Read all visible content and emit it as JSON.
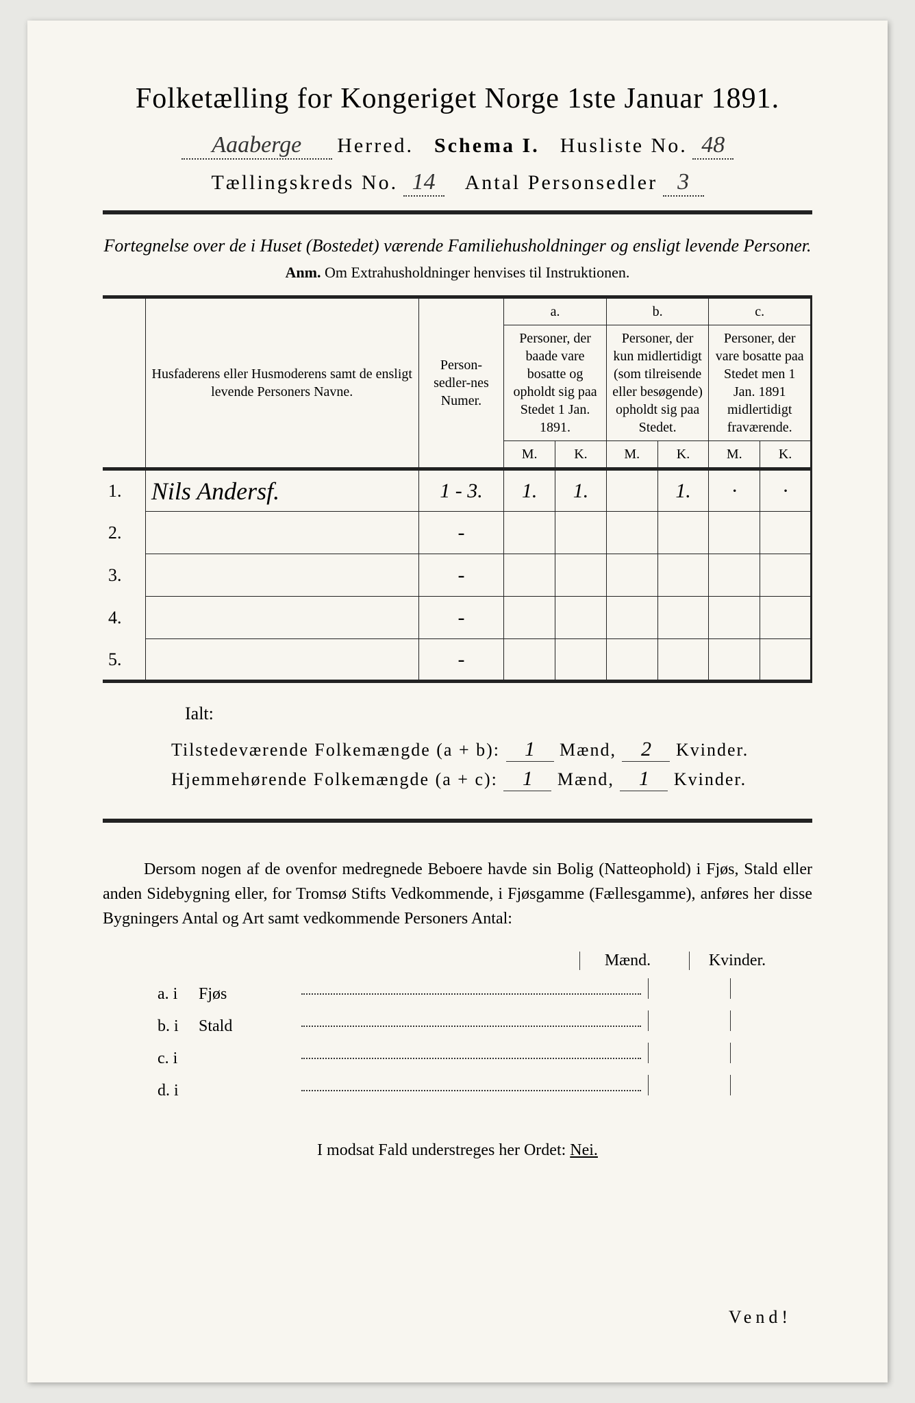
{
  "title": "Folketælling for Kongeriget Norge 1ste Januar 1891.",
  "header": {
    "herred_value": "Aaaberge",
    "herred_label": "Herred.",
    "schema_label": "Schema I.",
    "husliste_label": "Husliste No.",
    "husliste_value": "48",
    "kreds_label": "Tællingskreds No.",
    "kreds_value": "14",
    "personsedler_label": "Antal Personsedler",
    "personsedler_value": "3"
  },
  "subtitle": "Fortegnelse over de i Huset (Bostedet) værende Familiehusholdninger og ensligt levende Personer.",
  "anm_label": "Anm.",
  "anm_text": "Om Extrahusholdninger henvises til Instruktionen.",
  "table": {
    "col1": "Husfaderens eller Husmoderens samt de ensligt levende Personers Navne.",
    "col2": "Person-sedler-nes Numer.",
    "col_a_letter": "a.",
    "col_a": "Personer, der baade vare bosatte og opholdt sig paa Stedet 1 Jan. 1891.",
    "col_b_letter": "b.",
    "col_b": "Personer, der kun midlertidigt (som tilreisende eller besøgende) opholdt sig paa Stedet.",
    "col_c_letter": "c.",
    "col_c": "Personer, der vare bosatte paa Stedet men 1 Jan. 1891 midlertidigt fraværende.",
    "m": "M.",
    "k": "K.",
    "rows": [
      {
        "num": "1.",
        "name": "Nils Andersf.",
        "sedler": "1 - 3.",
        "am": "1.",
        "ak": "1.",
        "bm": "",
        "bk": "1.",
        "cm": "·",
        "ck": "·"
      },
      {
        "num": "2.",
        "name": "",
        "sedler": "-",
        "am": "",
        "ak": "",
        "bm": "",
        "bk": "",
        "cm": "",
        "ck": ""
      },
      {
        "num": "3.",
        "name": "",
        "sedler": "-",
        "am": "",
        "ak": "",
        "bm": "",
        "bk": "",
        "cm": "",
        "ck": ""
      },
      {
        "num": "4.",
        "name": "",
        "sedler": "-",
        "am": "",
        "ak": "",
        "bm": "",
        "bk": "",
        "cm": "",
        "ck": ""
      },
      {
        "num": "5.",
        "name": "",
        "sedler": "-",
        "am": "",
        "ak": "",
        "bm": "",
        "bk": "",
        "cm": "",
        "ck": ""
      }
    ]
  },
  "ialt": "Ialt:",
  "totals": {
    "line1_label": "Tilstedeværende Folkemængde (a + b):",
    "line1_m": "1",
    "line1_k": "2",
    "line2_label": "Hjemmehørende Folkemængde (a + c):",
    "line2_m": "1",
    "line2_k": "1",
    "maend": "Mænd,",
    "kvinder": "Kvinder."
  },
  "para": "Dersom nogen af de ovenfor medregnede Beboere havde sin Bolig (Natteophold) i Fjøs, Stald eller anden Sidebygning eller, for Tromsø Stifts Vedkommende, i Fjøsgamme (Fællesgamme), anføres her disse Bygningers Antal og Art samt vedkommende Personers Antal:",
  "mk": {
    "m": "Mænd.",
    "k": "Kvinder."
  },
  "buildings": [
    {
      "label": "a.  i",
      "type": "Fjøs"
    },
    {
      "label": "b.  i",
      "type": "Stald"
    },
    {
      "label": "c.  i",
      "type": ""
    },
    {
      "label": "d.  i",
      "type": ""
    }
  ],
  "nei_line_pre": "I modsat Fald understreges her Ordet: ",
  "nei": "Nei.",
  "vend": "Vend!"
}
